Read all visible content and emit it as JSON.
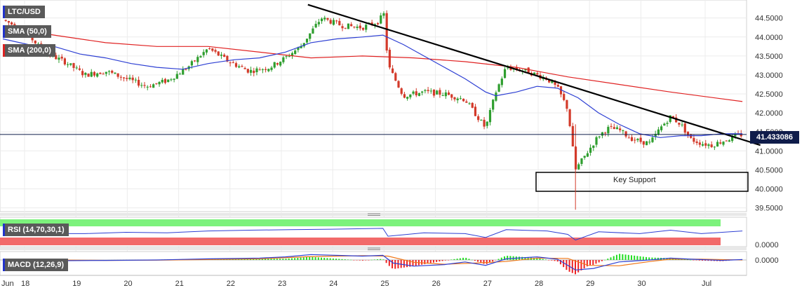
{
  "symbol": "LTC/USD",
  "indicators": {
    "sma50_label": "SMA (50,0)",
    "sma200_label": "SMA (200,0)",
    "rsi_label": "RSI (14,70,30,1)",
    "macd_label": "MACD (12,26,9)"
  },
  "current_price": "41.433086",
  "annotation": "Key Support",
  "colors": {
    "up": "#2e9e2e",
    "down": "#d33a2a",
    "sma50": "#2d3fd3",
    "sma200": "#e02222",
    "trendline": "#000000",
    "price_line": "#0f1c4a"
  },
  "chart_data": {
    "type": "candlestick",
    "x_ticks": [
      "Jun",
      "18",
      "19",
      "20",
      "21",
      "22",
      "23",
      "24",
      "25",
      "26",
      "27",
      "28",
      "29",
      "30",
      "Jul"
    ],
    "y_ticks": [
      "44.5000",
      "44.0000",
      "43.5000",
      "43.0000",
      "42.5000",
      "42.0000",
      "41.5000",
      "41.0000",
      "40.5000",
      "40.0000",
      "39.5000"
    ],
    "ylim": [
      39.4,
      44.9
    ],
    "price_path": [
      [
        0.0,
        44.45
      ],
      [
        0.4,
        44.2
      ],
      [
        0.8,
        43.6
      ],
      [
        1.2,
        43.35
      ],
      [
        1.6,
        43.0
      ],
      [
        2.0,
        43.1
      ],
      [
        2.4,
        42.9
      ],
      [
        2.8,
        42.7
      ],
      [
        3.2,
        42.85
      ],
      [
        3.6,
        43.2
      ],
      [
        4.0,
        43.7
      ],
      [
        4.4,
        43.35
      ],
      [
        4.8,
        43.1
      ],
      [
        5.2,
        43.2
      ],
      [
        5.5,
        43.45
      ],
      [
        5.8,
        43.75
      ],
      [
        6.2,
        44.5
      ],
      [
        6.6,
        44.3
      ],
      [
        7.0,
        44.25
      ],
      [
        7.3,
        44.4
      ],
      [
        7.42,
        44.6
      ],
      [
        7.5,
        43.25
      ],
      [
        7.8,
        42.45
      ],
      [
        8.2,
        42.55
      ],
      [
        8.6,
        42.5
      ],
      [
        9.0,
        42.35
      ],
      [
        9.4,
        41.6
      ],
      [
        9.6,
        42.55
      ],
      [
        9.8,
        43.2
      ],
      [
        10.2,
        43.1
      ],
      [
        10.6,
        42.9
      ],
      [
        10.8,
        42.65
      ],
      [
        11.0,
        42.1
      ],
      [
        11.15,
        40.5
      ],
      [
        11.3,
        40.8
      ],
      [
        11.6,
        41.4
      ],
      [
        11.8,
        41.6
      ],
      [
        12.0,
        41.55
      ],
      [
        12.2,
        41.35
      ],
      [
        12.4,
        41.25
      ],
      [
        12.6,
        41.2
      ],
      [
        12.8,
        41.6
      ],
      [
        13.0,
        41.9
      ],
      [
        13.2,
        41.7
      ],
      [
        13.4,
        41.3
      ],
      [
        13.6,
        41.2
      ],
      [
        13.8,
        41.15
      ],
      [
        14.0,
        41.25
      ],
      [
        14.3,
        41.4
      ],
      [
        14.4,
        41.43
      ]
    ],
    "sma50": [
      [
        0.0,
        43.95
      ],
      [
        0.5,
        43.8
      ],
      [
        1.0,
        43.75
      ],
      [
        1.5,
        43.55
      ],
      [
        2.0,
        43.45
      ],
      [
        2.5,
        43.3
      ],
      [
        3.0,
        43.2
      ],
      [
        3.5,
        43.15
      ],
      [
        4.0,
        43.3
      ],
      [
        4.5,
        43.4
      ],
      [
        5.0,
        43.45
      ],
      [
        5.5,
        43.6
      ],
      [
        6.0,
        43.85
      ],
      [
        6.5,
        43.95
      ],
      [
        7.0,
        44.0
      ],
      [
        7.4,
        44.05
      ],
      [
        7.8,
        43.8
      ],
      [
        8.2,
        43.5
      ],
      [
        8.6,
        43.2
      ],
      [
        9.0,
        42.9
      ],
      [
        9.4,
        42.55
      ],
      [
        9.6,
        42.45
      ],
      [
        10.0,
        42.55
      ],
      [
        10.4,
        42.7
      ],
      [
        10.8,
        42.65
      ],
      [
        11.2,
        42.4
      ],
      [
        11.6,
        42.0
      ],
      [
        12.0,
        41.7
      ],
      [
        12.4,
        41.45
      ],
      [
        12.8,
        41.35
      ],
      [
        13.2,
        41.4
      ],
      [
        13.6,
        41.4
      ],
      [
        14.0,
        41.45
      ],
      [
        14.4,
        41.45
      ]
    ],
    "sma200": [
      [
        0.0,
        44.25
      ],
      [
        1.0,
        44.05
      ],
      [
        2.0,
        43.85
      ],
      [
        3.0,
        43.75
      ],
      [
        4.0,
        43.75
      ],
      [
        5.0,
        43.6
      ],
      [
        6.0,
        43.45
      ],
      [
        7.0,
        43.5
      ],
      [
        8.0,
        43.45
      ],
      [
        9.0,
        43.35
      ],
      [
        10.0,
        43.2
      ],
      [
        11.0,
        42.95
      ],
      [
        12.0,
        42.75
      ],
      [
        13.0,
        42.55
      ],
      [
        14.4,
        42.3
      ]
    ],
    "trendline": [
      [
        5.94,
        44.85
      ],
      [
        14.75,
        41.15
      ]
    ],
    "key_support_zone": [
      40.0,
      40.5
    ],
    "rsi_zones": {
      "overbought": 70,
      "oversold": 30,
      "ylim": [
        0,
        100
      ]
    },
    "rsi": [
      [
        0.0,
        55
      ],
      [
        0.8,
        45
      ],
      [
        1.6,
        45
      ],
      [
        2.4,
        50
      ],
      [
        3.2,
        48
      ],
      [
        4.0,
        55
      ],
      [
        4.8,
        58
      ],
      [
        5.6,
        60
      ],
      [
        6.4,
        62
      ],
      [
        7.4,
        65
      ],
      [
        7.5,
        35
      ],
      [
        8.2,
        48
      ],
      [
        9.0,
        45
      ],
      [
        9.4,
        30
      ],
      [
        9.8,
        60
      ],
      [
        10.6,
        55
      ],
      [
        11.0,
        42
      ],
      [
        11.15,
        20
      ],
      [
        11.6,
        52
      ],
      [
        12.4,
        45
      ],
      [
        13.0,
        58
      ],
      [
        13.6,
        45
      ],
      [
        14.4,
        55
      ]
    ],
    "macd_axis_label": "0.0000",
    "macd": [
      [
        0.0,
        0.02
      ],
      [
        1.0,
        -0.02
      ],
      [
        2.0,
        -0.01
      ],
      [
        3.0,
        0.0
      ],
      [
        4.0,
        0.03
      ],
      [
        5.0,
        0.05
      ],
      [
        5.5,
        0.08
      ],
      [
        6.0,
        0.14
      ],
      [
        7.0,
        0.1
      ],
      [
        7.4,
        0.12
      ],
      [
        7.6,
        -0.08
      ],
      [
        8.0,
        -0.16
      ],
      [
        8.6,
        -0.12
      ],
      [
        9.0,
        -0.05
      ],
      [
        9.4,
        -0.14
      ],
      [
        9.8,
        0.03
      ],
      [
        10.4,
        0.08
      ],
      [
        10.8,
        0.02
      ],
      [
        11.15,
        -0.26
      ],
      [
        11.5,
        -0.22
      ],
      [
        12.0,
        -0.05
      ],
      [
        12.6,
        0.0
      ],
      [
        13.0,
        0.05
      ],
      [
        13.4,
        0.02
      ],
      [
        14.0,
        -0.01
      ],
      [
        14.4,
        0.01
      ]
    ],
    "macd_signal": [
      [
        0.0,
        0.01
      ],
      [
        1.0,
        0.0
      ],
      [
        2.0,
        -0.01
      ],
      [
        3.0,
        -0.005
      ],
      [
        4.0,
        0.01
      ],
      [
        5.0,
        0.03
      ],
      [
        6.0,
        0.09
      ],
      [
        7.0,
        0.11
      ],
      [
        7.5,
        0.1
      ],
      [
        8.0,
        -0.06
      ],
      [
        8.6,
        -0.11
      ],
      [
        9.2,
        -0.08
      ],
      [
        9.8,
        -0.04
      ],
      [
        10.4,
        0.05
      ],
      [
        11.0,
        0.04
      ],
      [
        11.4,
        -0.14
      ],
      [
        12.0,
        -0.15
      ],
      [
        12.6,
        -0.04
      ],
      [
        13.0,
        0.02
      ],
      [
        13.6,
        0.02
      ],
      [
        14.4,
        0.0
      ]
    ]
  }
}
